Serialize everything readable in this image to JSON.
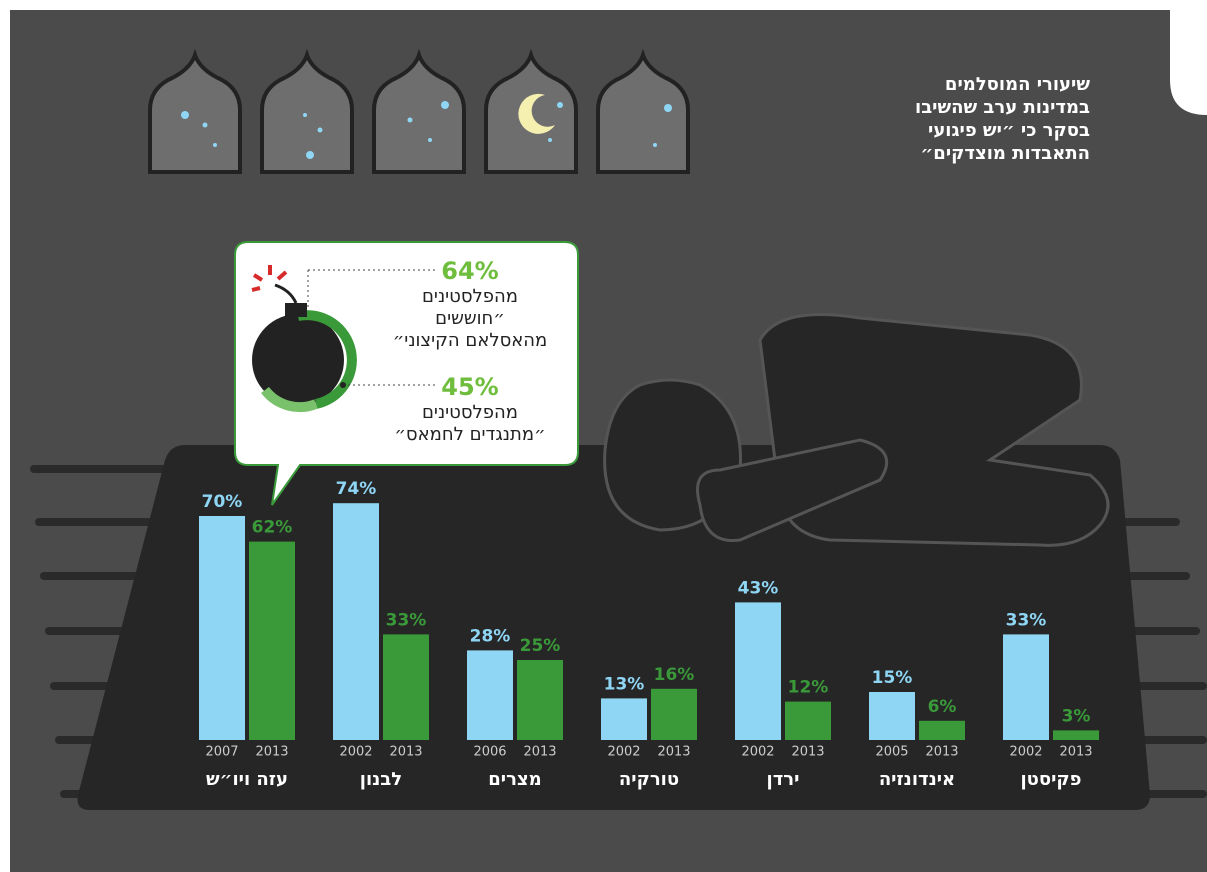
{
  "chart_data": {
    "type": "bar",
    "title": [
      "שיעורי המוסלמים",
      "במדינות ערב שהשיבו",
      "בסקר כי ״יש פיגועי",
      "התאבדות מוצדקים״"
    ],
    "categories": [
      "עזה ויו״ש",
      "לבנון",
      "מצרים",
      "טורקיה",
      "ירדן",
      "אינדונזיה",
      "פקיסטן"
    ],
    "series": [
      {
        "color": "#8fd6f5",
        "years": [
          "2007",
          "2002",
          "2006",
          "2002",
          "2002",
          "2005",
          "2002"
        ],
        "values": [
          70,
          74,
          28,
          13,
          43,
          15,
          33
        ],
        "value_labels": [
          "70%",
          "74%",
          "28%",
          "13%",
          "43%",
          "15%",
          "33%"
        ]
      },
      {
        "color": "#3a9a3a",
        "years": [
          "2013",
          "2013",
          "2013",
          "2013",
          "2013",
          "2013",
          "2013"
        ],
        "values": [
          62,
          33,
          25,
          16,
          12,
          6,
          3
        ],
        "value_labels": [
          "62%",
          "33%",
          "25%",
          "16%",
          "12%",
          "6%",
          "3%"
        ]
      }
    ],
    "callout": [
      {
        "stat": "64%",
        "lines": [
          "מהפלסטינים",
          "״חוששים",
          "מהאסלאם הקיצוני״"
        ]
      },
      {
        "stat": "45%",
        "lines": [
          "מהפלסטינים",
          "״מתנגדים לחמאס״"
        ]
      }
    ]
  }
}
